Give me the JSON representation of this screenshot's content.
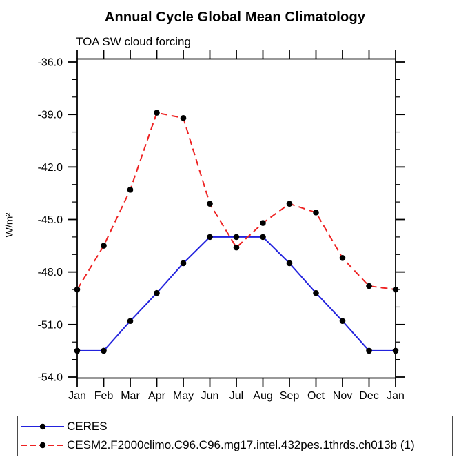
{
  "chart_data": {
    "type": "line",
    "title": "Annual Cycle Global Mean Climatology",
    "subtitle": "TOA SW cloud forcing",
    "ylabel": "W/m²",
    "xlabel": "",
    "categories": [
      "Jan",
      "Feb",
      "Mar",
      "Apr",
      "May",
      "Jun",
      "Jul",
      "Aug",
      "Sep",
      "Oct",
      "Nov",
      "Dec",
      "Jan"
    ],
    "series": [
      {
        "name": "CERES",
        "color": "#2222dd",
        "line_style": "solid",
        "marker": "filled-circle",
        "marker_color": "#000000",
        "values": [
          -52.5,
          -52.5,
          -50.8,
          -49.2,
          -47.5,
          -46.0,
          -46.0,
          -46.0,
          -47.5,
          -49.2,
          -50.8,
          -52.5,
          -52.5
        ]
      },
      {
        "name": "CESM2.F2000climo.C96.C96.mg17.intel.432pes.1thrds.ch013b (1)",
        "color": "#ee2222",
        "line_style": "dashed",
        "marker": "filled-circle",
        "marker_color": "#000000",
        "values": [
          -49.0,
          -46.5,
          -43.3,
          -38.9,
          -39.2,
          -44.1,
          -46.6,
          -45.2,
          -44.1,
          -44.6,
          -47.2,
          -48.8,
          -49.0
        ]
      }
    ],
    "ylim": [
      -54.1,
      -35.8
    ],
    "yticks_major": [
      -36,
      -39,
      -42,
      -45,
      -48,
      -51,
      -54
    ],
    "ytick_labels": [
      "-36.0",
      "-39.0",
      "-42.0",
      "-45.0",
      "-48.0",
      "-51.0",
      "-54.0"
    ],
    "yminor_step": 1,
    "grid": false,
    "legend_position": "bottom-box",
    "axis_color": "#000000"
  }
}
